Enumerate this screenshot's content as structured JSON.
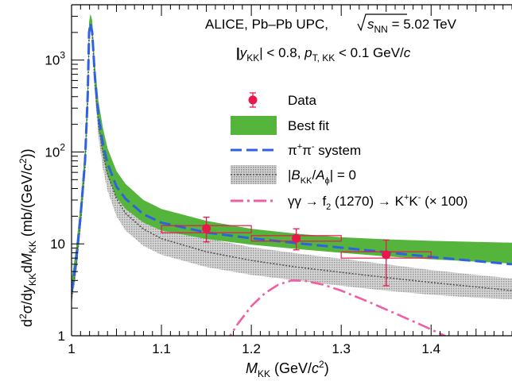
{
  "chart_data": {
    "type": "line",
    "header": {
      "line1_pre": "ALICE, Pb–Pb UPC, ",
      "line1_sqrt_base": "s",
      "line1_sqrt_sub": "NN",
      "line1_post": " = 5.02 TeV",
      "line2_abs_var": "y",
      "line2_abs_sub": "KK",
      "line2_mid": " < 0.8, ",
      "line2_pt": "p",
      "line2_pt_sub": "T, KK",
      "line2_post": " < 0.1 GeV/",
      "line2_c": "c"
    },
    "xlabel": {
      "var": "M",
      "sub": "KK",
      "unit_pre": " (GeV/",
      "unit_c": "c",
      "unit_sup": "2",
      "unit_post": ")"
    },
    "ylabel": {
      "d1": "d",
      "sup1": "2",
      "sigma": "σ/d",
      "y": "y",
      "sub1": "KK",
      "dM": "d",
      "M": "M",
      "sub2": "KK",
      "unit_pre": " (mb/(GeV/",
      "unit_c": "c",
      "unit_sup": "2",
      "unit_post": "))"
    },
    "xlim": [
      1.0,
      1.49
    ],
    "ylim": [
      1,
      4000
    ],
    "yscale": "log",
    "x_ticks": [
      {
        "v": 1.0,
        "label": "1"
      },
      {
        "v": 1.1,
        "label": "1.1"
      },
      {
        "v": 1.2,
        "label": "1.2"
      },
      {
        "v": 1.3,
        "label": "1.3"
      },
      {
        "v": 1.4,
        "label": "1.4"
      }
    ],
    "y_ticks": [
      {
        "v": 1,
        "label": "1"
      },
      {
        "v": 10,
        "label": "10"
      },
      {
        "v": 100,
        "label": "10",
        "exp": "2"
      },
      {
        "v": 1000,
        "label": "10",
        "exp": "3"
      }
    ],
    "legend": {
      "data": "Data",
      "best_fit": "Best fit",
      "pipi_base": "π",
      "pipi_sup1": "+",
      "pipi_mid": "π",
      "pipi_sup2": "-",
      "pipi_post": " system",
      "interference_pre": "|",
      "interference_B": "B",
      "interference_sub": "KK",
      "interference_slash": "/",
      "interference_A": "A",
      "interference_phi": "ϕ",
      "interference_post": "| = 0",
      "gg_pre": "γγ → f",
      "gg_sub": "2",
      "gg_mid": " (1270) → K",
      "gg_sup1": "+",
      "gg_k": "K",
      "gg_sup2": "-",
      "gg_post": " (× 100)"
    },
    "data_points": [
      {
        "x": 1.15,
        "y": 14.7,
        "y_low": 10.5,
        "y_high": 19.5,
        "x_low": 1.1,
        "x_high": 1.2,
        "sys_low": 13.2,
        "sys_high": 15.8
      },
      {
        "x": 1.25,
        "y": 11.5,
        "y_low": 8.6,
        "y_high": 14.6,
        "x_low": 1.2,
        "x_high": 1.3,
        "sys_low": 10.7,
        "sys_high": 12.3
      },
      {
        "x": 1.35,
        "y": 7.6,
        "y_low": 3.5,
        "y_high": 11.0,
        "x_low": 1.3,
        "x_high": 1.4,
        "sys_low": 7.0,
        "sys_high": 8.2
      }
    ],
    "best_fit_band": {
      "x": [
        1.0,
        1.005,
        1.01,
        1.015,
        1.018,
        1.0195,
        1.021,
        1.023,
        1.026,
        1.03,
        1.035,
        1.04,
        1.05,
        1.06,
        1.08,
        1.1,
        1.15,
        1.2,
        1.25,
        1.3,
        1.35,
        1.4,
        1.45,
        1.49
      ],
      "low": [
        2.5,
        5,
        15,
        60,
        300,
        1500,
        2400,
        1800,
        500,
        180,
        90,
        55,
        32,
        24,
        17,
        14,
        11.3,
        9.8,
        8.8,
        8.0,
        7.3,
        6.8,
        6.4,
        6.1
      ],
      "high": [
        4.0,
        9,
        28,
        110,
        600,
        2600,
        3200,
        2700,
        900,
        350,
        180,
        110,
        62,
        45,
        30,
        24,
        17.8,
        14.6,
        12.9,
        11.8,
        11.2,
        10.8,
        10.5,
        10.3
      ]
    },
    "pipi_curve": {
      "x": [
        1.0,
        1.005,
        1.01,
        1.015,
        1.018,
        1.0195,
        1.021,
        1.023,
        1.026,
        1.03,
        1.035,
        1.04,
        1.05,
        1.06,
        1.08,
        1.1,
        1.15,
        1.2,
        1.25,
        1.3,
        1.35,
        1.4,
        1.45,
        1.49
      ],
      "y": [
        3.0,
        6.5,
        20,
        80,
        420,
        2000,
        2500,
        2000,
        650,
        240,
        120,
        75,
        42,
        31,
        21,
        17,
        13.3,
        11.5,
        10.2,
        9.1,
        8.1,
        7.2,
        6.5,
        6.0
      ]
    },
    "interference_band": {
      "x": [
        1.0,
        1.005,
        1.01,
        1.015,
        1.018,
        1.0195,
        1.021,
        1.023,
        1.026,
        1.03,
        1.035,
        1.04,
        1.05,
        1.06,
        1.08,
        1.1,
        1.15,
        1.2,
        1.25,
        1.3,
        1.35,
        1.4,
        1.45,
        1.49
      ],
      "low": [
        2.2,
        4.5,
        14,
        55,
        280,
        1400,
        2200,
        1600,
        420,
        140,
        65,
        38,
        20,
        14.0,
        9.5,
        7.6,
        5.6,
        4.6,
        4.0,
        3.5,
        3.1,
        2.8,
        2.6,
        2.5
      ],
      "high": [
        3.2,
        7,
        22,
        90,
        500,
        2300,
        3000,
        2500,
        780,
        290,
        140,
        85,
        45,
        31,
        21,
        16.5,
        11.5,
        9.2,
        7.9,
        6.9,
        6.0,
        5.2,
        4.6,
        4.2
      ]
    },
    "interference_curve": {
      "x": [
        1.0,
        1.005,
        1.01,
        1.015,
        1.018,
        1.0195,
        1.021,
        1.023,
        1.026,
        1.03,
        1.035,
        1.04,
        1.05,
        1.06,
        1.08,
        1.1,
        1.15,
        1.2,
        1.25,
        1.3,
        1.35,
        1.4,
        1.45,
        1.49
      ],
      "y": [
        2.6,
        5.5,
        17,
        70,
        360,
        1800,
        2500,
        2000,
        560,
        200,
        95,
        58,
        31,
        21.5,
        14.5,
        11.4,
        8.2,
        6.6,
        5.6,
        4.9,
        4.3,
        3.8,
        3.4,
        3.1
      ]
    },
    "gg_curve": {
      "x": [
        1.17,
        1.185,
        1.2,
        1.215,
        1.23,
        1.245,
        1.26,
        1.28,
        1.3,
        1.33,
        1.36,
        1.39,
        1.42
      ],
      "y": [
        0.8,
        1.35,
        2.1,
        2.9,
        3.6,
        4.0,
        3.95,
        3.6,
        3.1,
        2.35,
        1.75,
        1.3,
        0.95
      ]
    },
    "colors": {
      "data": "#e8194a",
      "best_fit": "#54b43c",
      "pipi": "#2f62e0",
      "interference_fill": "#b8b8b8",
      "interference_line": "#555555",
      "gg": "#ee5fa7"
    }
  }
}
